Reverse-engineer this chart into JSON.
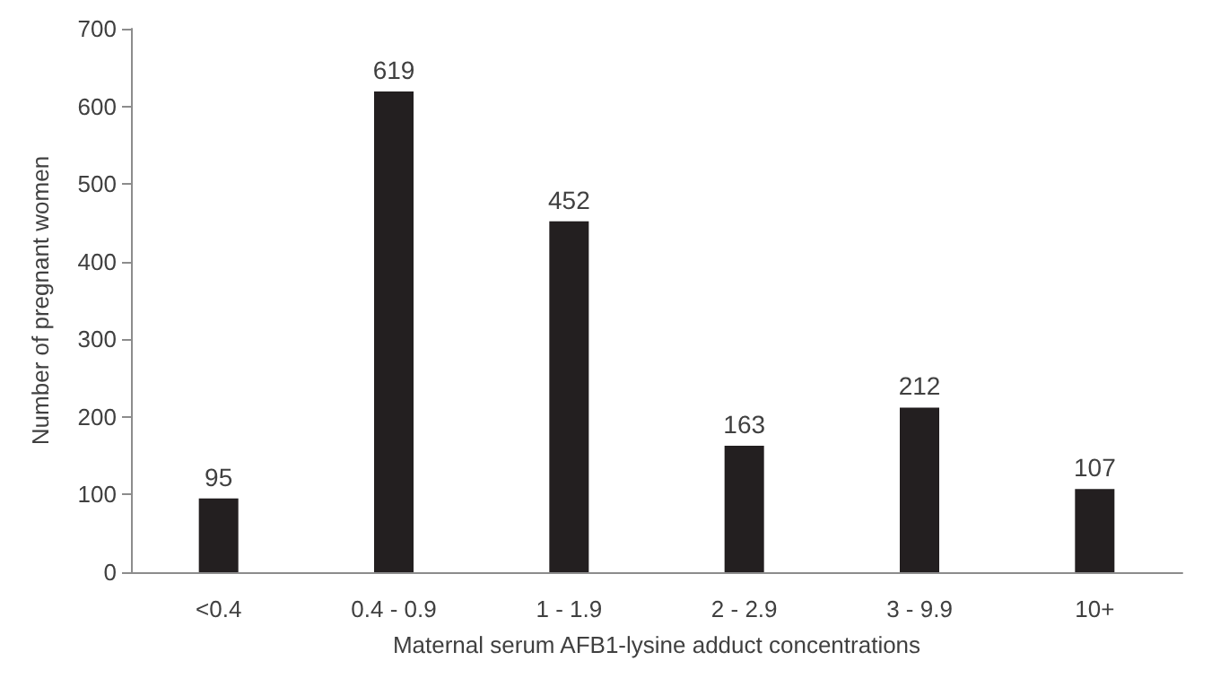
{
  "chart_data": {
    "type": "bar",
    "xlabel": "Maternal serum AFB1-lysine adduct concentrations",
    "ylabel": "Number of pregnant women",
    "categories": [
      "<0.4",
      "0.4 - 0.9",
      "1 - 1.9",
      "2 - 2.9",
      "3 - 9.9",
      "10+"
    ],
    "values": [
      95,
      619,
      452,
      163,
      212,
      107
    ],
    "color": "#231f20",
    "ylim": [
      0,
      700
    ],
    "yticks": [
      0,
      100,
      200,
      300,
      400,
      500,
      600,
      700
    ],
    "data_labels": true
  }
}
